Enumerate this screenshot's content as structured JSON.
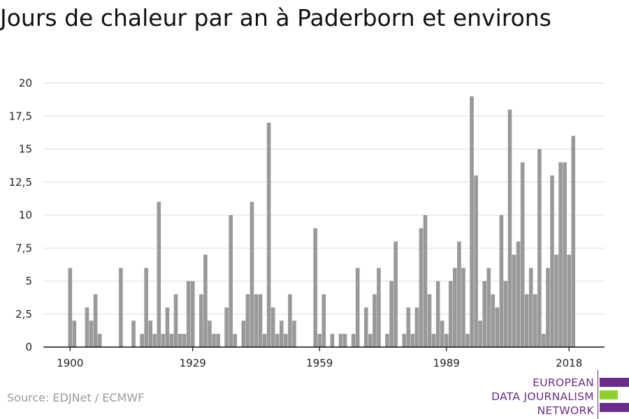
{
  "title": "Jours de chaleur par an à Paderborn et environs",
  "source": "Source: EDJNet / ECMWF",
  "logo": {
    "line1": "EUROPEAN",
    "line2": "DATA JOURNALISM",
    "line3": "NETWORK",
    "colors": [
      "#6b2d8c",
      "#8fd12a",
      "#6b2d8c"
    ]
  },
  "chart_data": {
    "type": "bar",
    "bar_color": "#999999",
    "grid": true,
    "ylim": [
      0,
      20
    ],
    "y_ticks": [
      "0",
      "2,5",
      "5",
      "7,5",
      "10",
      "12,5",
      "15",
      "17,5",
      "20"
    ],
    "x_ticks": [
      "1900",
      "1929",
      "1959",
      "1989",
      "2018"
    ],
    "x_start": 1900,
    "values": [
      6,
      2,
      0,
      0,
      3,
      2,
      4,
      1,
      0,
      0,
      0,
      0,
      6,
      0,
      0,
      2,
      0,
      1,
      6,
      2,
      1,
      11,
      1,
      3,
      1,
      4,
      1,
      1,
      5,
      5,
      0,
      4,
      7,
      2,
      1,
      1,
      0,
      3,
      10,
      1,
      0,
      2,
      4,
      11,
      4,
      4,
      1,
      17,
      3,
      1,
      2,
      1,
      4,
      2,
      0,
      0,
      0,
      0,
      9,
      1,
      4,
      0,
      1,
      0,
      1,
      1,
      0,
      1,
      6,
      0,
      3,
      1,
      4,
      6,
      0,
      1,
      5,
      8,
      0,
      1,
      3,
      1,
      3,
      9,
      10,
      4,
      1,
      5,
      2,
      1,
      5,
      6,
      8,
      6,
      1,
      19,
      13,
      2,
      5,
      6,
      4,
      3,
      10,
      5,
      18,
      7,
      8,
      14,
      4,
      6,
      4,
      15,
      1,
      6,
      13,
      7,
      14,
      14,
      7,
      16
    ]
  }
}
